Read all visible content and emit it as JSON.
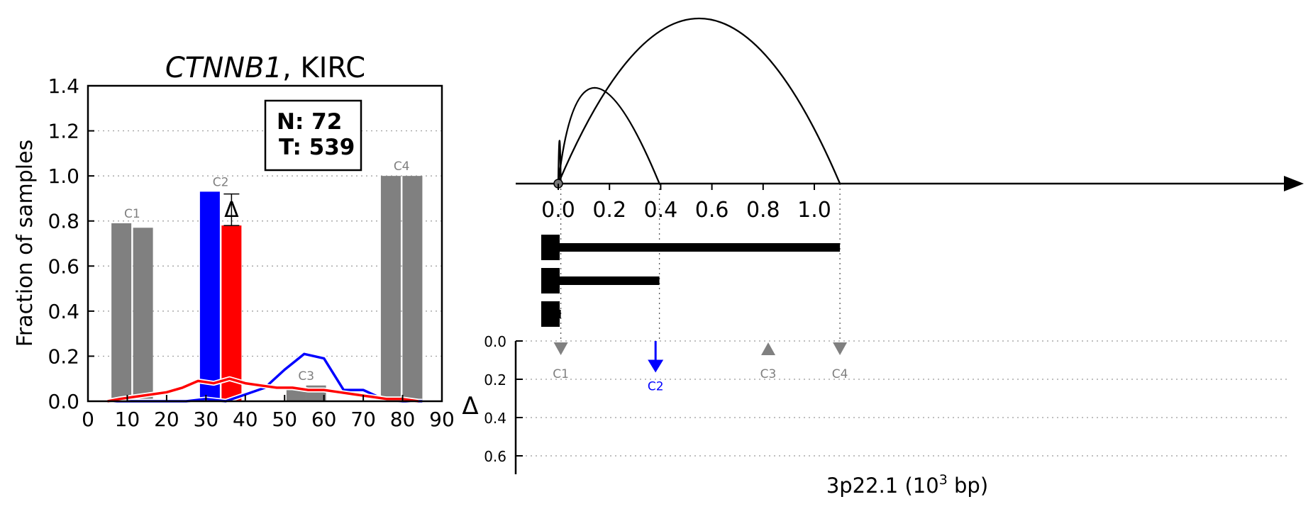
{
  "left_panel": {
    "title_gene": "CTNNB1",
    "title_sep": ", ",
    "title_cancer": "KIRC",
    "ylabel": "Fraction of samples",
    "counts": {
      "n_line": "N: 72",
      "t_line": "T: 539"
    },
    "delta_symbol": "Δ"
  },
  "right_panel": {
    "xlabel": "3p22.1 (10",
    "xlabel_sup": "3",
    "xlabel_end": " bp)",
    "delta_axis_label": "Δ"
  },
  "colors": {
    "normal": "#0000ff",
    "tumor": "#ff0000",
    "grey": "#808080",
    "grid": "#999999"
  },
  "chart_data": [
    {
      "type": "bar",
      "title": "CTNNB1, KIRC",
      "xlabel": "",
      "ylabel": "Fraction of samples",
      "xlim": [
        0,
        90
      ],
      "ylim": [
        0,
        1.4
      ],
      "xticks": [
        0,
        10,
        20,
        30,
        40,
        50,
        60,
        70,
        80,
        90
      ],
      "yticks": [
        0.0,
        0.2,
        0.4,
        0.6,
        0.8,
        1.0,
        1.2,
        1.4
      ],
      "grid": "horizontal dotted",
      "bars": [
        {
          "cluster": "C1",
          "x": 8.5,
          "value": 0.79,
          "color": "grey"
        },
        {
          "cluster": "C1",
          "x": 14,
          "value": 0.77,
          "color": "grey"
        },
        {
          "cluster": "C2",
          "x": 31,
          "value": 0.93,
          "color": "normal"
        },
        {
          "cluster": "C2",
          "x": 36.5,
          "value": 0.78,
          "color": "tumor"
        },
        {
          "cluster": "C3",
          "x": 53,
          "value": 0.06,
          "color": "grey"
        },
        {
          "cluster": "C3",
          "x": 58,
          "value": 0.07,
          "color": "grey"
        },
        {
          "cluster": "C4",
          "x": 77,
          "value": 1.0,
          "color": "grey"
        },
        {
          "cluster": "C4",
          "x": 82.5,
          "value": 1.0,
          "color": "grey"
        }
      ],
      "bar_label_clusters": [
        "C1",
        "C2",
        "C3",
        "C4"
      ],
      "series": [
        {
          "color": "normal",
          "x": [
            5,
            10,
            15,
            20,
            25,
            30,
            35,
            40,
            45,
            50,
            55,
            60,
            65,
            70,
            75,
            80,
            85
          ],
          "y": [
            0,
            0,
            0,
            0,
            0,
            0.01,
            0,
            0.03,
            0.06,
            0.14,
            0.21,
            0.19,
            0.05,
            0.05,
            0.01,
            0,
            0
          ]
        },
        {
          "color": "tumor",
          "x": [
            5,
            8,
            12,
            16,
            20,
            24,
            28,
            32,
            36,
            40,
            44,
            48,
            52,
            56,
            60,
            64,
            68,
            72,
            76,
            80,
            84
          ],
          "y": [
            0.0,
            0.01,
            0.02,
            0.03,
            0.04,
            0.06,
            0.09,
            0.08,
            0.1,
            0.08,
            0.07,
            0.06,
            0.06,
            0.05,
            0.05,
            0.04,
            0.03,
            0.02,
            0.01,
            0.01,
            0.0
          ]
        }
      ],
      "error_bar": {
        "x": 36.5,
        "low": 0.78,
        "high": 0.92,
        "label": "Δ"
      }
    },
    {
      "type": "line",
      "xlabel": "3p22.1 (10^3 bp)",
      "xlim": [
        -0.01,
        1.16
      ],
      "xticks": [
        0.0,
        0.2,
        0.4,
        0.6,
        0.8,
        1.0
      ],
      "arcs": [
        {
          "from": 0.0,
          "to": 0.01,
          "peak": 0.26
        },
        {
          "from": 0.0,
          "to": 0.395,
          "peak": 0.58
        },
        {
          "from": 0.0,
          "to": 1.1,
          "peak": 1.0
        }
      ],
      "transcripts": [
        {
          "start": 0.0,
          "end": 1.1
        },
        {
          "start": 0.0,
          "end": 0.395
        },
        {
          "start": 0.0,
          "end": 0.01
        }
      ],
      "delta_ylim": [
        0.0,
        0.7
      ],
      "delta_yticks": [
        0.0,
        0.2,
        0.4,
        0.6
      ],
      "cluster_markers": [
        {
          "name": "C1",
          "x": 0.01,
          "delta": 0.04,
          "marker": "triangle-down",
          "color": "grey"
        },
        {
          "name": "C2",
          "x": 0.38,
          "delta": 0.15,
          "marker": "arrow-down",
          "color": "normal"
        },
        {
          "name": "C3",
          "x": 0.82,
          "delta": 0.04,
          "marker": "triangle-up",
          "color": "grey"
        },
        {
          "name": "C4",
          "x": 1.1,
          "delta": 0.04,
          "marker": "triangle-down",
          "color": "grey"
        }
      ]
    }
  ]
}
